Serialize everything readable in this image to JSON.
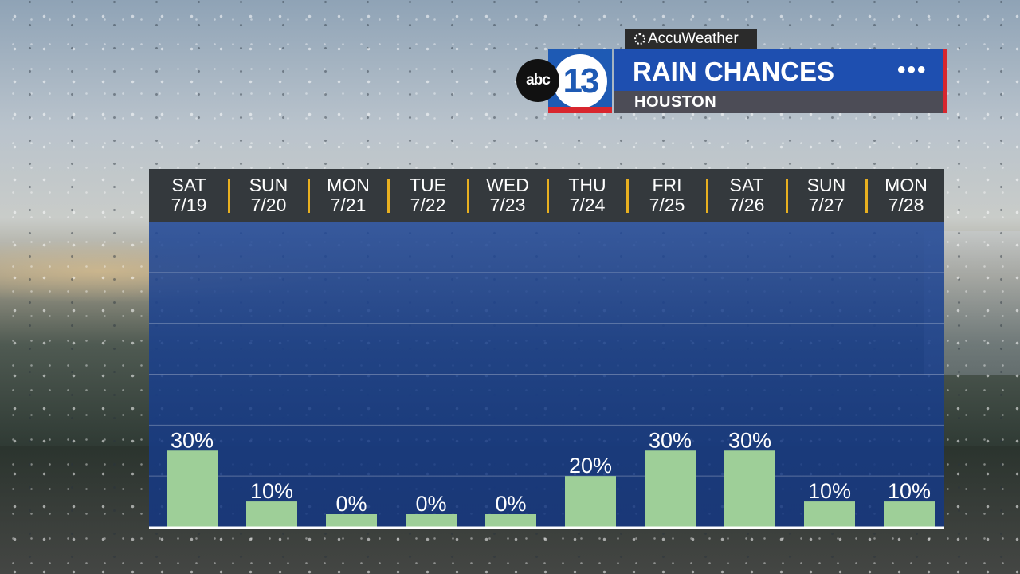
{
  "branding": {
    "provider": "AccuWeather",
    "logo_abc": "abc",
    "logo_13": "13"
  },
  "header": {
    "title": "RAIN CHANCES",
    "subtitle": "HOUSTON",
    "menu_glyph": "•••"
  },
  "colors": {
    "title_bar": "#1e4fb0",
    "plot_background": "#1e4696",
    "bar": "#9ecf98",
    "separator": "#e8b020",
    "accent_red": "#d8262e"
  },
  "chart_data": {
    "type": "bar",
    "title": "RAIN CHANCES",
    "subtitle": "HOUSTON",
    "unit": "%",
    "categories": [
      {
        "day": "SAT",
        "date": "7/19"
      },
      {
        "day": "SUN",
        "date": "7/20"
      },
      {
        "day": "MON",
        "date": "7/21"
      },
      {
        "day": "TUE",
        "date": "7/22"
      },
      {
        "day": "WED",
        "date": "7/23"
      },
      {
        "day": "THU",
        "date": "7/24"
      },
      {
        "day": "FRI",
        "date": "7/25"
      },
      {
        "day": "SAT",
        "date": "7/26"
      },
      {
        "day": "SUN",
        "date": "7/27"
      },
      {
        "day": "MON",
        "date": "7/28"
      }
    ],
    "values": [
      30,
      10,
      0,
      0,
      0,
      20,
      30,
      30,
      10,
      10
    ],
    "labels": [
      "30%",
      "10%",
      "0%",
      "0%",
      "0%",
      "20%",
      "30%",
      "30%",
      "10%",
      "10%"
    ],
    "ylim": [
      0,
      120
    ],
    "grid": true,
    "xlabel": "",
    "ylabel": ""
  }
}
